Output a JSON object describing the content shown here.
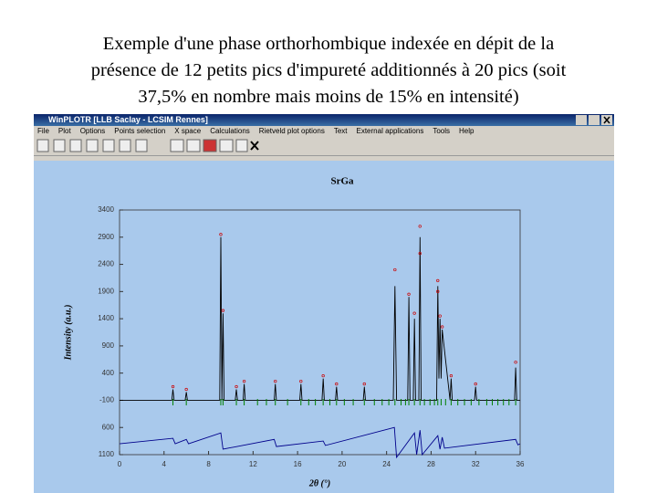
{
  "slide": {
    "title_lines": [
      "Exemple d'une phase orthorhombique indexée en dépit de la",
      "présence de 12 petits pics d'impureté additionnés à 20 pics (soit",
      "37,5% en nombre mais moins de 15% en intensité)"
    ]
  },
  "window": {
    "title": "WinPLOTR [LLB Saclay - LCSIM Rennes]",
    "menu": [
      "File",
      "Plot",
      "Options",
      "Points selection",
      "X space",
      "Calculations",
      "Rietveld plot options",
      "Text",
      "External applications",
      "Tools",
      "Help"
    ]
  },
  "chart_data": {
    "type": "line",
    "title": "SrGa",
    "xlabel": "2θ (°)",
    "ylabel": "Intensity (a.u.)",
    "xlim": [
      0,
      36
    ],
    "xticks": [
      0,
      4,
      8,
      12,
      16,
      20,
      24,
      28,
      32,
      36
    ],
    "ylim": [
      -1100,
      3400
    ],
    "yticks": [
      {
        "value": -1100,
        "label": "1100"
      },
      {
        "value": -600,
        "label": "600"
      },
      -100,
      400,
      900,
      1400,
      1900,
      2400,
      2900,
      3400
    ],
    "series": [
      {
        "mode": "line",
        "color": "#000000",
        "x": [
          0,
          4.7,
          4.8,
          4.9,
          5.9,
          6.0,
          6.1,
          9.0,
          9.1,
          9.2,
          9.3,
          9.4,
          10.4,
          10.5,
          10.6,
          11.1,
          11.2,
          11.3,
          13.9,
          14.0,
          14.1,
          16.2,
          16.3,
          16.4,
          18.2,
          18.3,
          18.4,
          19.4,
          19.5,
          19.6,
          21.9,
          22.0,
          22.1,
          24.6,
          24.75,
          24.9,
          25.9,
          26.0,
          26.1,
          26.4,
          26.5,
          26.6,
          26.9,
          27.0,
          27.1,
          28.5,
          28.6,
          28.7,
          28.8,
          28.9,
          29.0,
          29.7,
          29.8,
          29.9,
          31.9,
          32.0,
          32.1,
          35.5,
          35.6,
          35.7,
          36
        ],
        "values": [
          -100,
          -100,
          100,
          -100,
          -100,
          50,
          -100,
          -100,
          2900,
          -100,
          1500,
          -100,
          -100,
          100,
          -100,
          -100,
          200,
          -100,
          -100,
          200,
          -100,
          -100,
          200,
          -100,
          -100,
          300,
          -100,
          -100,
          150,
          -100,
          -100,
          150,
          -100,
          -100,
          2000,
          -100,
          -100,
          1800,
          -100,
          -100,
          1400,
          -100,
          -100,
          2900,
          -100,
          -100,
          2000,
          300,
          1400,
          300,
          1200,
          -100,
          300,
          -100,
          -100,
          150,
          -100,
          -100,
          500,
          -100,
          -100
        ]
      },
      {
        "mode": "points",
        "color": "#cc0000",
        "x": [
          4.8,
          6.0,
          9.1,
          9.3,
          10.5,
          11.2,
          14.0,
          16.3,
          18.3,
          19.5,
          22.0,
          24.75,
          26.0,
          26.5,
          27.0,
          27.0,
          28.6,
          28.6,
          28.8,
          29.0,
          29.8,
          32.0,
          35.6
        ],
        "values": [
          150,
          100,
          2950,
          1550,
          150,
          250,
          250,
          250,
          350,
          200,
          200,
          2300,
          1850,
          1500,
          3100,
          2600,
          2100,
          1900,
          1450,
          1250,
          350,
          200,
          600
        ]
      },
      {
        "mode": "line",
        "color": "#00008b",
        "x": [
          0,
          4.8,
          5.0,
          6.0,
          6.2,
          9.1,
          9.3,
          13.9,
          14.1,
          18.3,
          18.5,
          24.7,
          24.9,
          26.5,
          26.7,
          27.0,
          27.2,
          28.6,
          28.8,
          29.0,
          29.2,
          35.6,
          35.8,
          36
        ],
        "values": [
          -900,
          -800,
          -900,
          -820,
          -900,
          -700,
          -1000,
          -820,
          -950,
          -850,
          -930,
          -600,
          -1150,
          -700,
          -1100,
          -650,
          -1100,
          -750,
          -1000,
          -780,
          -980,
          -820,
          -920,
          -900
        ]
      }
    ],
    "bragg_positions": {
      "color": "#008000",
      "x": [
        4.8,
        6.0,
        9.1,
        9.3,
        10.5,
        11.2,
        12.4,
        13.2,
        14.0,
        15.1,
        16.3,
        17.0,
        17.6,
        18.3,
        18.9,
        19.5,
        20.2,
        21.0,
        22.0,
        22.9,
        23.6,
        24.2,
        24.75,
        25.3,
        25.7,
        26.0,
        26.5,
        27.0,
        27.4,
        27.9,
        28.3,
        28.6,
        28.9,
        29.3,
        29.8,
        30.4,
        31.0,
        31.6,
        32.3,
        33.0,
        33.5,
        34.0,
        34.5,
        35.0,
        35.6
      ]
    }
  }
}
